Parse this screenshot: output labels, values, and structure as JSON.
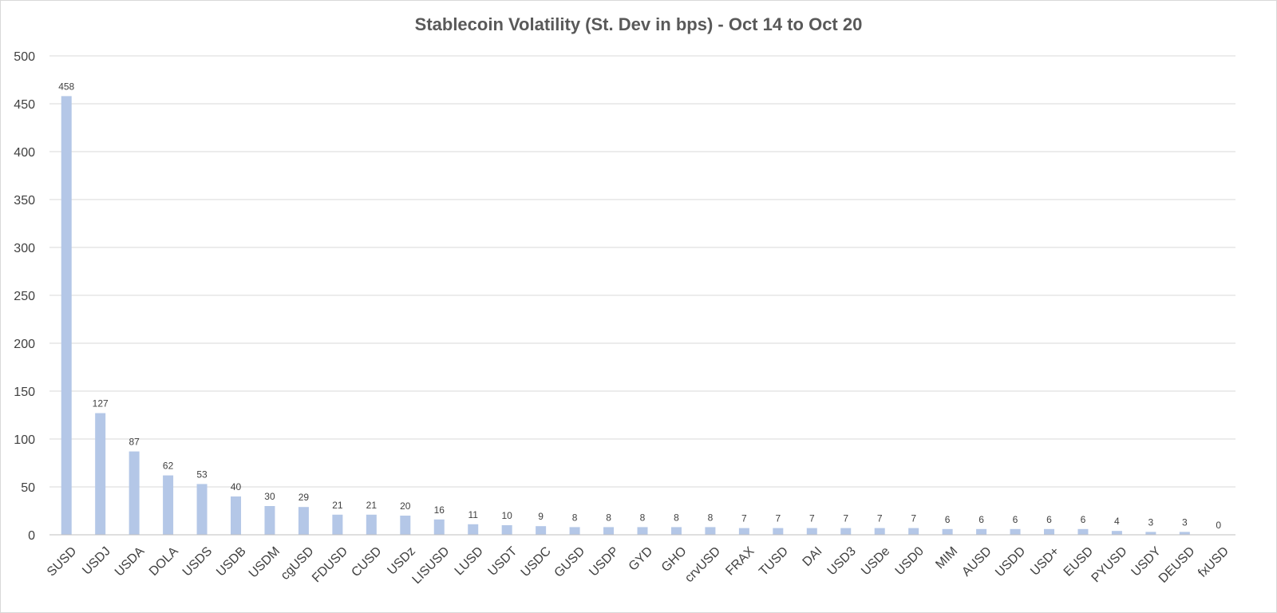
{
  "chart_data": {
    "type": "bar",
    "title": "Stablecoin Volatility (St. Dev in bps) - Oct 14 to Oct 20",
    "xlabel": "",
    "ylabel": "",
    "ylim": [
      0,
      500
    ],
    "yticks": [
      0,
      50,
      100,
      150,
      200,
      250,
      300,
      350,
      400,
      450,
      500
    ],
    "grid": true,
    "legend": "none",
    "bar_color": "#b4c7e7",
    "categories": [
      "SUSD",
      "USDJ",
      "USDA",
      "DOLA",
      "USDS",
      "USDB",
      "USDM",
      "cgUSD",
      "FDUSD",
      "CUSD",
      "USDz",
      "LISUSD",
      "LUSD",
      "USDT",
      "USDC",
      "GUSD",
      "USDP",
      "GYD",
      "GHO",
      "crvUSD",
      "FRAX",
      "TUSD",
      "DAI",
      "USD3",
      "USDe",
      "USD0",
      "MIM",
      "AUSD",
      "USDD",
      "USD+",
      "EUSD",
      "PYUSD",
      "USDY",
      "DEUSD",
      "fxUSD"
    ],
    "values": [
      458,
      127,
      87,
      62,
      53,
      40,
      30,
      29,
      21,
      21,
      20,
      16,
      11,
      10,
      9,
      8,
      8,
      8,
      8,
      8,
      7,
      7,
      7,
      7,
      7,
      7,
      6,
      6,
      6,
      6,
      6,
      4,
      3,
      3,
      0
    ]
  }
}
